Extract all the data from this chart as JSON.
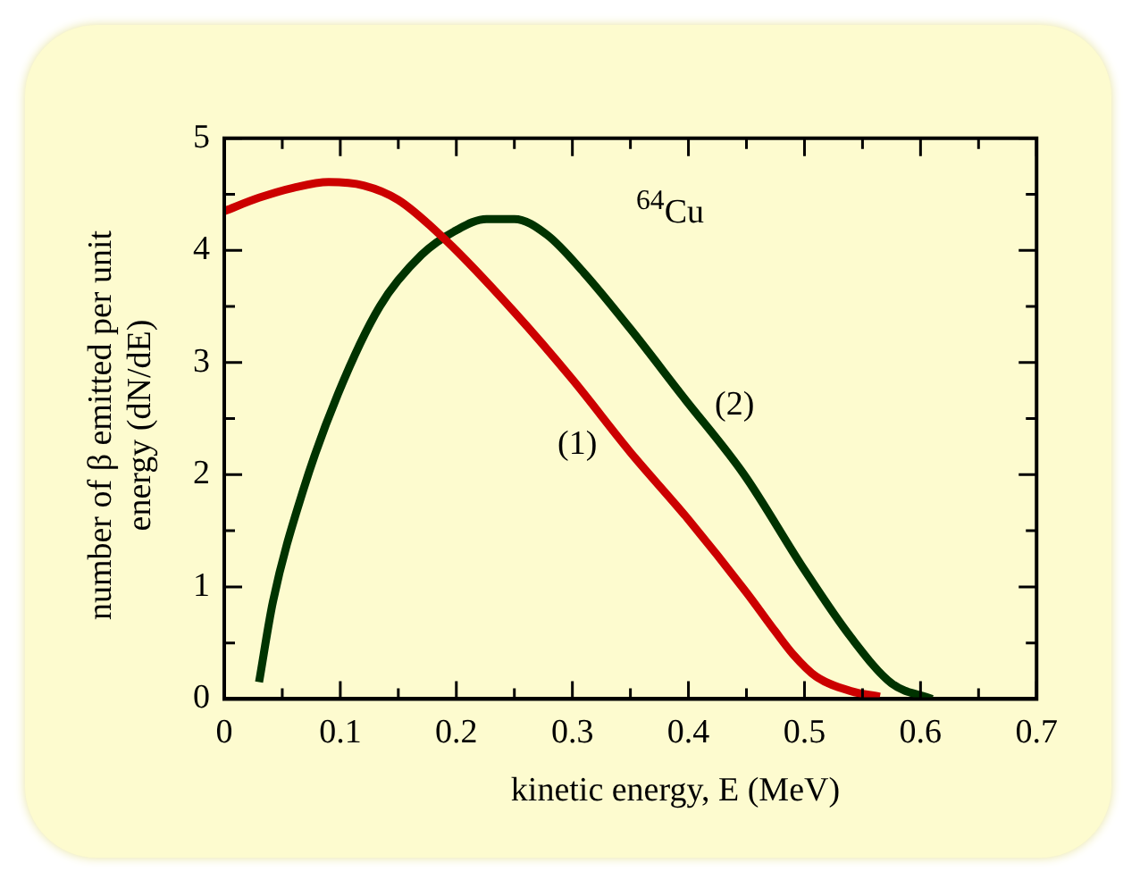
{
  "chart_data": {
    "type": "line",
    "xlabel": "kinetic energy, E (MeV)",
    "ylabel": "number of β emitted per unit energy (dN/dE)",
    "xlim": [
      0,
      0.7
    ],
    "xticks": [
      0,
      0.1,
      0.2,
      0.3,
      0.4,
      0.5,
      0.6,
      0.7
    ],
    "ylim": [
      0,
      5
    ],
    "yticks": [
      0,
      1,
      2,
      3,
      4,
      5
    ],
    "grid": false,
    "legend": false,
    "marker": "none",
    "line_style": "solid",
    "annotations": [
      "$^{64}$Cu",
      "(1)",
      "(2)"
    ],
    "series": [
      {
        "color": "#cc0000",
        "x": [
          0,
          0.03,
          0.06,
          0.09,
          0.12,
          0.15,
          0.19,
          0.25,
          0.3,
          0.35,
          0.4,
          0.45,
          0.475,
          0.49,
          0.51,
          0.54,
          0.565
        ],
        "values": [
          4.35,
          4.47,
          4.56,
          4.61,
          4.58,
          4.45,
          4.1,
          3.45,
          2.85,
          2.2,
          1.6,
          0.95,
          0.6,
          0.4,
          0.2,
          0.07,
          0.02
        ]
      },
      {
        "color": "#003300",
        "x": [
          0.03,
          0.042,
          0.068,
          0.098,
          0.134,
          0.17,
          0.2,
          0.226,
          0.25,
          0.278,
          0.31,
          0.35,
          0.395,
          0.448,
          0.5,
          0.54,
          0.575,
          0.61
        ],
        "values": [
          0.15,
          0.87,
          1.86,
          2.72,
          3.5,
          3.96,
          4.18,
          4.28,
          4.28,
          4.14,
          3.8,
          3.3,
          2.7,
          2.0,
          1.15,
          0.55,
          0.14,
          0
        ]
      }
    ]
  }
}
